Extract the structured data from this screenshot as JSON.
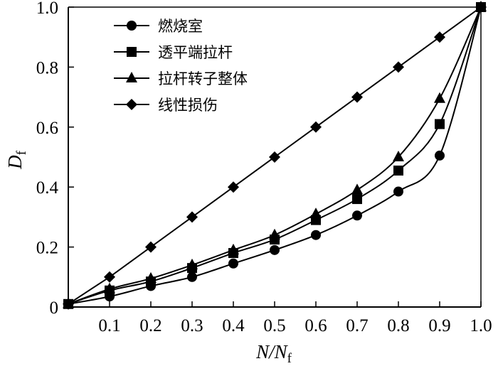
{
  "chart_data": {
    "type": "line",
    "xlabel": "N/N_f",
    "ylabel": "D_f",
    "xlim": [
      0,
      1.0
    ],
    "ylim": [
      0,
      1.0
    ],
    "x_ticks": [
      "0.1",
      "0.2",
      "0.3",
      "0.4",
      "0.5",
      "0.6",
      "0.7",
      "0.8",
      "0.9",
      "1.0"
    ],
    "y_ticks": [
      "0",
      "0.2",
      "0.4",
      "0.6",
      "0.8",
      "1.0"
    ],
    "legend_position": "top-left",
    "x": [
      0.0,
      0.1,
      0.2,
      0.3,
      0.4,
      0.5,
      0.6,
      0.7,
      0.8,
      0.9,
      1.0
    ],
    "series": [
      {
        "name": "燃烧室",
        "marker": "circle",
        "values": [
          0.01,
          0.035,
          0.07,
          0.1,
          0.145,
          0.19,
          0.24,
          0.305,
          0.385,
          0.505,
          1.0
        ]
      },
      {
        "name": "透平端拉杆",
        "marker": "square",
        "values": [
          0.01,
          0.055,
          0.085,
          0.13,
          0.18,
          0.225,
          0.29,
          0.36,
          0.455,
          0.61,
          1.0
        ]
      },
      {
        "name": "拉杆转子整体",
        "marker": "triangle",
        "values": [
          0.01,
          0.06,
          0.095,
          0.14,
          0.19,
          0.24,
          0.31,
          0.39,
          0.5,
          0.695,
          1.0
        ]
      },
      {
        "name": "线性损伤",
        "marker": "diamond",
        "values": [
          0.01,
          0.1,
          0.2,
          0.3,
          0.4,
          0.5,
          0.6,
          0.7,
          0.8,
          0.9,
          1.0
        ]
      }
    ]
  }
}
